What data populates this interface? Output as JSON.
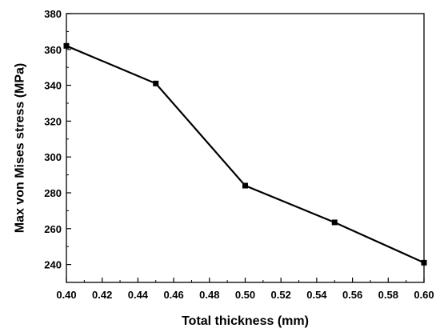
{
  "chart_data": {
    "type": "line",
    "title": "",
    "xlabel": "Total thickness (mm)",
    "ylabel": "Max von Mises stress (MPa)",
    "xlim": [
      0.4,
      0.6
    ],
    "ylim": [
      230,
      380
    ],
    "xticks": [
      "0.40",
      "0.42",
      "0.44",
      "0.46",
      "0.48",
      "0.50",
      "0.52",
      "0.54",
      "0.56",
      "0.58",
      "0.60"
    ],
    "yticks": [
      "240",
      "260",
      "280",
      "300",
      "320",
      "340",
      "360",
      "380"
    ],
    "grid": false,
    "series": [
      {
        "x": [
          0.4,
          0.45,
          0.5,
          0.55,
          0.6
        ],
        "y": [
          362,
          341,
          284,
          263.5,
          241
        ]
      }
    ],
    "colors": {
      "line": "#000000",
      "marker": "#000000"
    }
  }
}
